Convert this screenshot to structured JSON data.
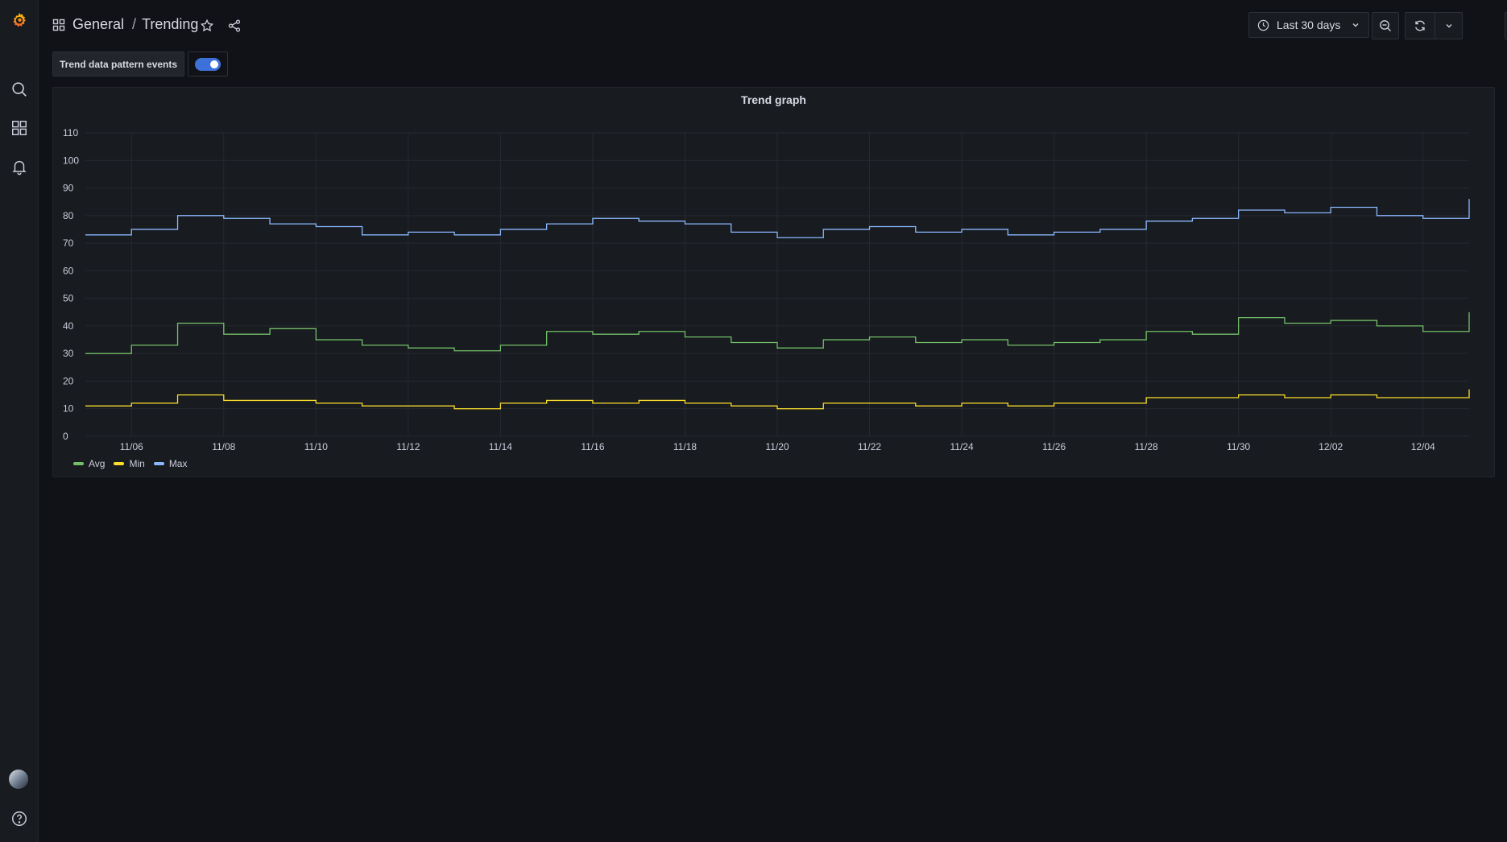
{
  "breadcrumb": {
    "folder": "General",
    "separator": "/",
    "dashboard": "Trending"
  },
  "toolbar": {
    "time_range": "Last 30 days"
  },
  "variables": {
    "trend_label": "Trend data pattern events",
    "trend_enabled": true
  },
  "panel": {
    "title": "Trend graph"
  },
  "colors": {
    "avg": "#73bf69",
    "min": "#fade2a",
    "max": "#8ab8ff",
    "toggle": "#3d71d9",
    "background": "#111217"
  },
  "icons": [
    "grafana-logo-icon",
    "search-icon",
    "dashboards-icon",
    "alerting-bell-icon",
    "help-icon",
    "dashboard-grid-icon",
    "star-icon",
    "share-icon",
    "clock-icon",
    "chevron-down-icon",
    "zoom-out-icon",
    "refresh-icon",
    "tv-mode-icon"
  ],
  "chart_data": {
    "type": "line",
    "title": "Trend graph",
    "x_type": "time",
    "x_range": [
      "11/05",
      "12/05"
    ],
    "x_ticks": [
      "11/06",
      "11/08",
      "11/10",
      "11/12",
      "11/14",
      "11/16",
      "11/18",
      "11/20",
      "11/22",
      "11/24",
      "11/26",
      "11/28",
      "11/30",
      "12/02",
      "12/04"
    ],
    "ylim": [
      0,
      110
    ],
    "y_ticks": [
      0,
      10,
      20,
      30,
      40,
      50,
      60,
      70,
      80,
      90,
      100,
      110
    ],
    "grid": true,
    "step": true,
    "legend_position": "bottom-left",
    "series": [
      {
        "name": "Avg",
        "color": "#73bf69",
        "x": [
          "11/05",
          "11/06",
          "11/07",
          "11/08",
          "11/09",
          "11/10",
          "11/11",
          "11/12",
          "11/13",
          "11/14",
          "11/15",
          "11/16",
          "11/17",
          "11/18",
          "11/19",
          "11/20",
          "11/21",
          "11/22",
          "11/23",
          "11/24",
          "11/25",
          "11/26",
          "11/27",
          "11/28",
          "11/29",
          "11/30",
          "12/01",
          "12/02",
          "12/03",
          "12/04",
          "12/05"
        ],
        "values": [
          30,
          33,
          41,
          37,
          39,
          35,
          33,
          32,
          31,
          33,
          38,
          37,
          38,
          36,
          34,
          32,
          35,
          36,
          34,
          35,
          33,
          34,
          35,
          38,
          37,
          43,
          41,
          42,
          40,
          38,
          45
        ]
      },
      {
        "name": "Min",
        "color": "#fade2a",
        "x": [
          "11/05",
          "11/06",
          "11/07",
          "11/08",
          "11/09",
          "11/10",
          "11/11",
          "11/12",
          "11/13",
          "11/14",
          "11/15",
          "11/16",
          "11/17",
          "11/18",
          "11/19",
          "11/20",
          "11/21",
          "11/22",
          "11/23",
          "11/24",
          "11/25",
          "11/26",
          "11/27",
          "11/28",
          "11/29",
          "11/30",
          "12/01",
          "12/02",
          "12/03",
          "12/04",
          "12/05"
        ],
        "values": [
          11,
          12,
          15,
          13,
          13,
          12,
          11,
          11,
          10,
          12,
          13,
          12,
          13,
          12,
          11,
          10,
          12,
          12,
          11,
          12,
          11,
          12,
          12,
          14,
          14,
          15,
          14,
          15,
          14,
          14,
          17
        ]
      },
      {
        "name": "Max",
        "color": "#8ab8ff",
        "x": [
          "11/05",
          "11/06",
          "11/07",
          "11/08",
          "11/09",
          "11/10",
          "11/11",
          "11/12",
          "11/13",
          "11/14",
          "11/15",
          "11/16",
          "11/17",
          "11/18",
          "11/19",
          "11/20",
          "11/21",
          "11/22",
          "11/23",
          "11/24",
          "11/25",
          "11/26",
          "11/27",
          "11/28",
          "11/29",
          "11/30",
          "12/01",
          "12/02",
          "12/03",
          "12/04",
          "12/05"
        ],
        "values": [
          73,
          75,
          80,
          79,
          77,
          76,
          73,
          74,
          73,
          75,
          77,
          79,
          78,
          77,
          74,
          72,
          75,
          76,
          74,
          75,
          73,
          74,
          75,
          78,
          79,
          82,
          81,
          83,
          80,
          79,
          86
        ]
      }
    ]
  }
}
